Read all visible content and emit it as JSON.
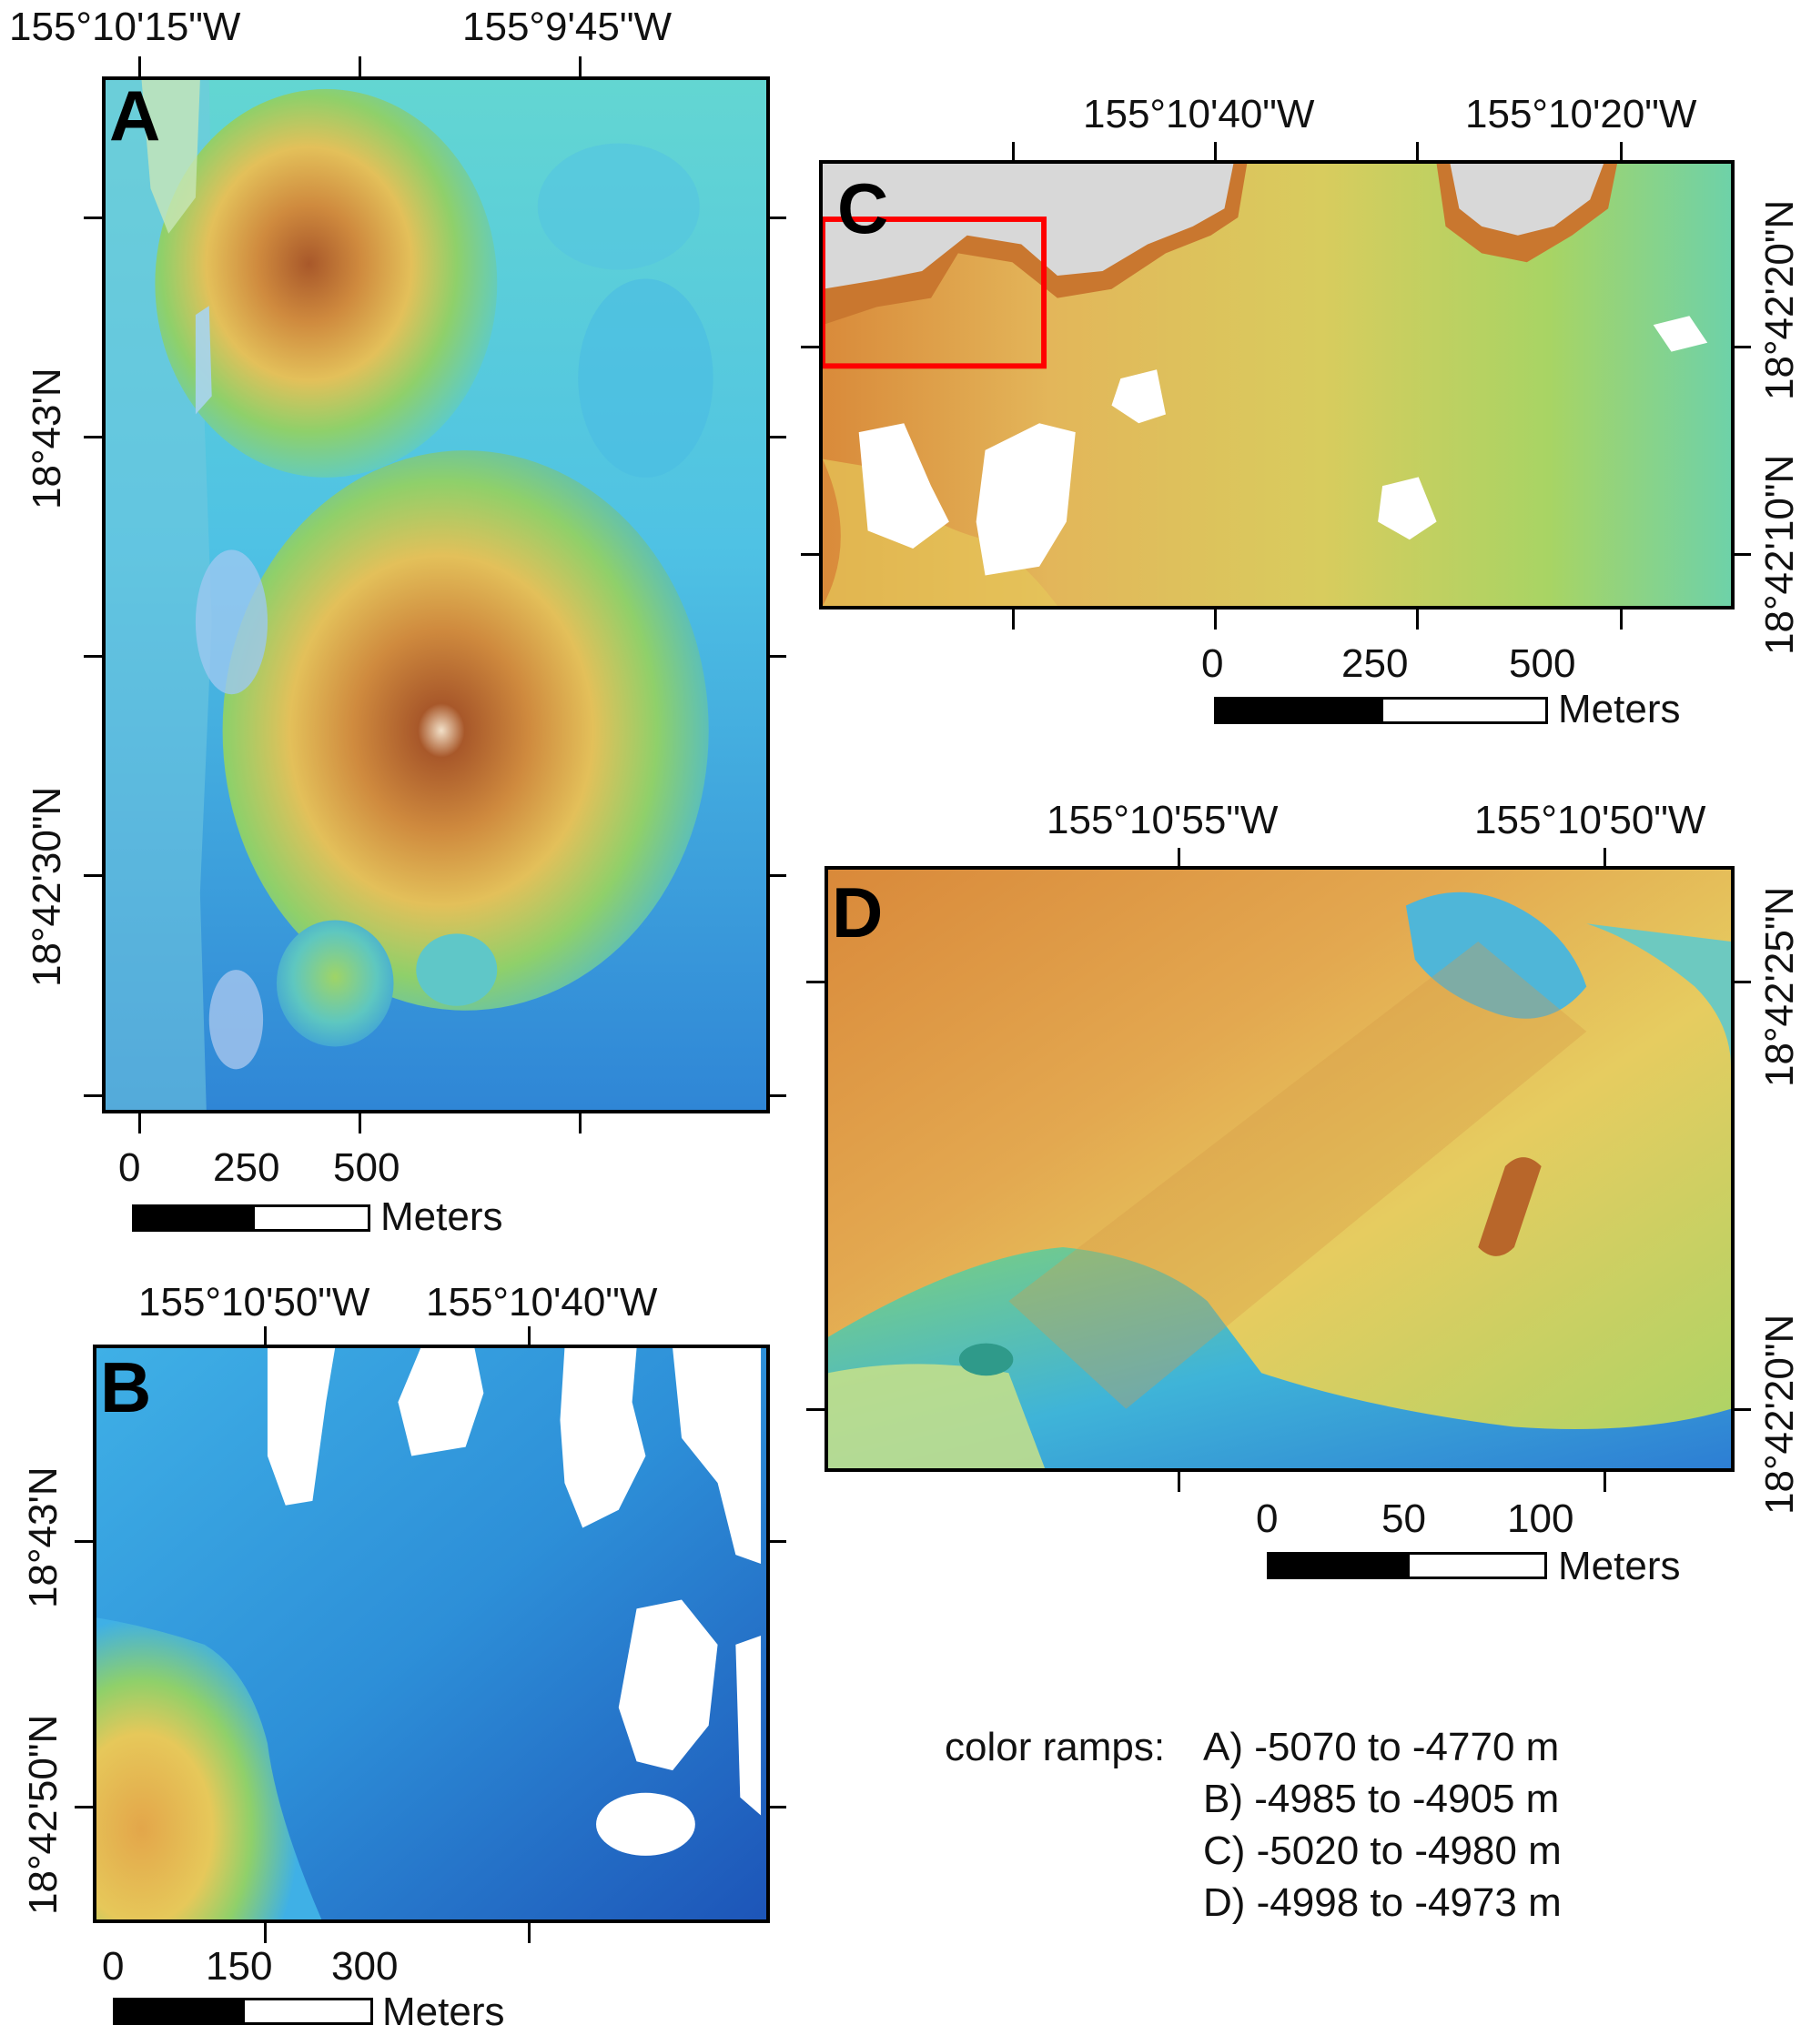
{
  "panels": {
    "A": {
      "letter": "A",
      "lon_labels": [
        "155°10'15\"W",
        "155°9'45\"W"
      ],
      "lat_labels": [
        "18°43'N",
        "18°42'30\"N"
      ],
      "scale": {
        "ticks": [
          "0",
          "250",
          "500"
        ],
        "unit": "Meters"
      }
    },
    "B": {
      "letter": "B",
      "lon_labels": [
        "155°10'50\"W",
        "155°10'40\"W"
      ],
      "lat_labels": [
        "18°43'N",
        "18°42'50\"N"
      ],
      "scale": {
        "ticks": [
          "0",
          "150",
          "300"
        ],
        "unit": "Meters"
      }
    },
    "C": {
      "letter": "C",
      "lon_labels": [
        "155°10'40\"W",
        "155°10'20\"W"
      ],
      "lat_labels": [
        "18°42'20\"N",
        "18°42'10\"N"
      ],
      "scale": {
        "ticks": [
          "0",
          "250",
          "500"
        ],
        "unit": "Meters"
      }
    },
    "D": {
      "letter": "D",
      "lon_labels": [
        "155°10'55\"W",
        "155°10'50\"W"
      ],
      "lat_labels": [
        "18°42'25\"N",
        "18°42'20\"N"
      ],
      "scale": {
        "ticks": [
          "0",
          "50",
          "100"
        ],
        "unit": "Meters"
      }
    }
  },
  "legend": {
    "prefix": "color ramps:",
    "rows": [
      "A) -5070 to -4770 m",
      "B) -4985 to -4905 m",
      "C) -5020 to -4980 m",
      "D) -4998 to -4973 m"
    ]
  },
  "colors": {
    "deep": "#1f5fc0",
    "mid_blue": "#3aa6e0",
    "cyan": "#5fd0e0",
    "green": "#8fd06a",
    "yellow": "#e6c85a",
    "orange": "#d98a3a",
    "brown": "#9a5a2a",
    "nodata": "#ffffff",
    "highlight_box": "#ff0000"
  }
}
